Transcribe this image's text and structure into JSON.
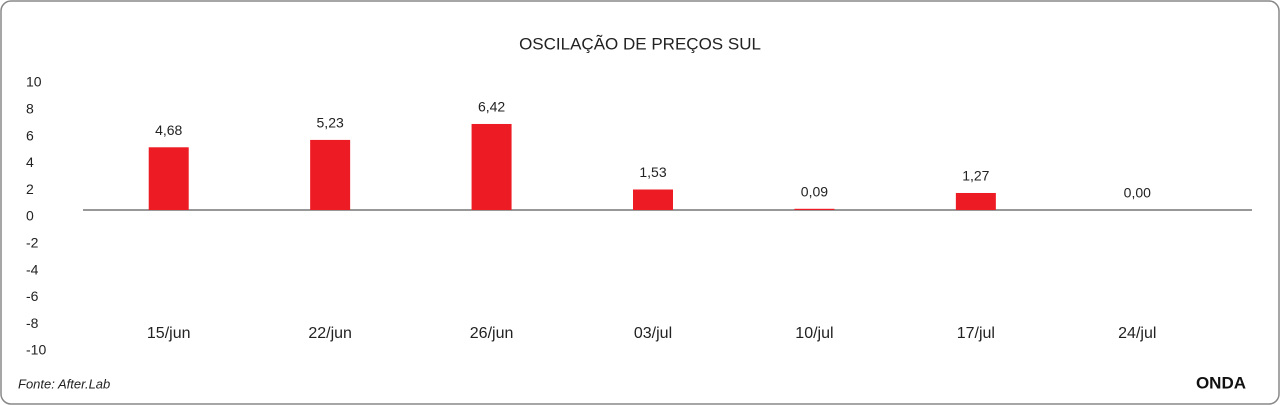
{
  "chart_data": {
    "type": "bar",
    "title": "OSCILAÇÃO DE PREÇOS SUL",
    "categories": [
      "15/jun",
      "22/jun",
      "26/jun",
      "03/jul",
      "10/jul",
      "17/jul",
      "24/jul"
    ],
    "values": [
      4.68,
      5.23,
      6.42,
      1.53,
      0.09,
      1.27,
      0.0
    ],
    "value_labels": [
      "4,68",
      "5,23",
      "6,42",
      "1,53",
      "0,09",
      "1,27",
      "0,00"
    ],
    "color": "#ed1c24",
    "ylim": [
      -10,
      10
    ],
    "yticks": [
      -10,
      -8,
      -6,
      -4,
      -2,
      0,
      2,
      4,
      6,
      8,
      10
    ],
    "grid": false,
    "source": "Fonte: After.Lab",
    "logo": "ONDA"
  }
}
